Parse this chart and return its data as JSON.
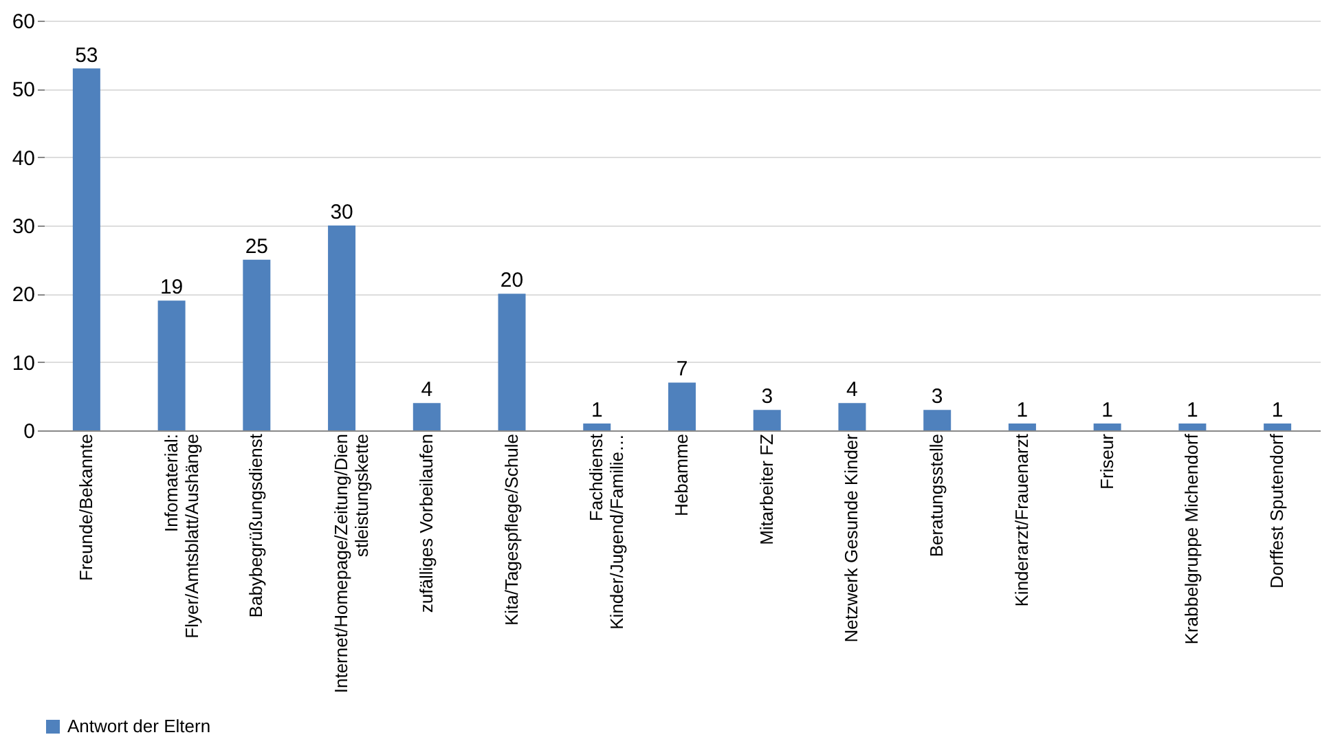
{
  "chart_data": {
    "type": "bar",
    "categories": [
      "Freunde/Bekannte",
      "Infomaterial:\nFlyer/Amtsblatt/Aushänge",
      "Babybegrüßungsdienst",
      "Internet/Homepage/Zeitung/Dien\nstleistungskette",
      "zufälliges Vorbeilaufen",
      "Kita/Tagespflege/Schule",
      "Fachdienst\nKinder/Jugend/Familie…",
      "Hebamme",
      "Mitarbeiter FZ",
      "Netzwerk Gesunde Kinder",
      "Beratungsstelle",
      "Kinderarzt/Frauenarzt",
      "Friseur",
      "Krabbelgruppe Michendorf",
      "Dorffest Sputendorf"
    ],
    "series": [
      {
        "name": "Antwort der Eltern",
        "color": "#4f81bd",
        "values": [
          53,
          19,
          25,
          30,
          4,
          20,
          1,
          7,
          3,
          4,
          3,
          1,
          1,
          1,
          1
        ]
      }
    ],
    "ylim": [
      0,
      60
    ],
    "yticks": [
      0,
      10,
      20,
      30,
      40,
      50,
      60
    ],
    "grid": "y",
    "legend": "bottom",
    "data_labels": true
  }
}
